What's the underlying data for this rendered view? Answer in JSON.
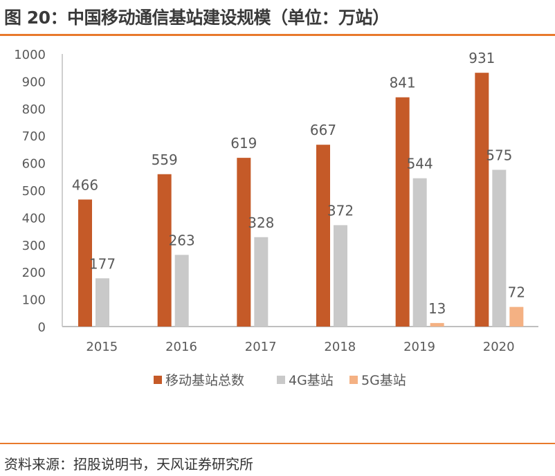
{
  "title": "图 20：中国移动通信基站建设规模（单位：万站）",
  "source": "资料来源：招股说明书，天风证券研究所",
  "chart_data": {
    "type": "bar",
    "categories": [
      "2015",
      "2016",
      "2017",
      "2018",
      "2019",
      "2020"
    ],
    "series": [
      {
        "name": "移动基站总数",
        "color": "#c55a28",
        "values": [
          466,
          559,
          619,
          667,
          841,
          931
        ]
      },
      {
        "name": "4G基站",
        "color": "#c9c9c9",
        "values": [
          177,
          263,
          328,
          372,
          544,
          575
        ]
      },
      {
        "name": "5G基站",
        "color": "#f4b183",
        "values": [
          null,
          null,
          null,
          null,
          13,
          72
        ]
      }
    ],
    "ylim": [
      0,
      1000
    ],
    "yticks": [
      0,
      100,
      200,
      300,
      400,
      500,
      600,
      700,
      800,
      900,
      1000
    ],
    "legend": "bottom",
    "grid": false
  }
}
